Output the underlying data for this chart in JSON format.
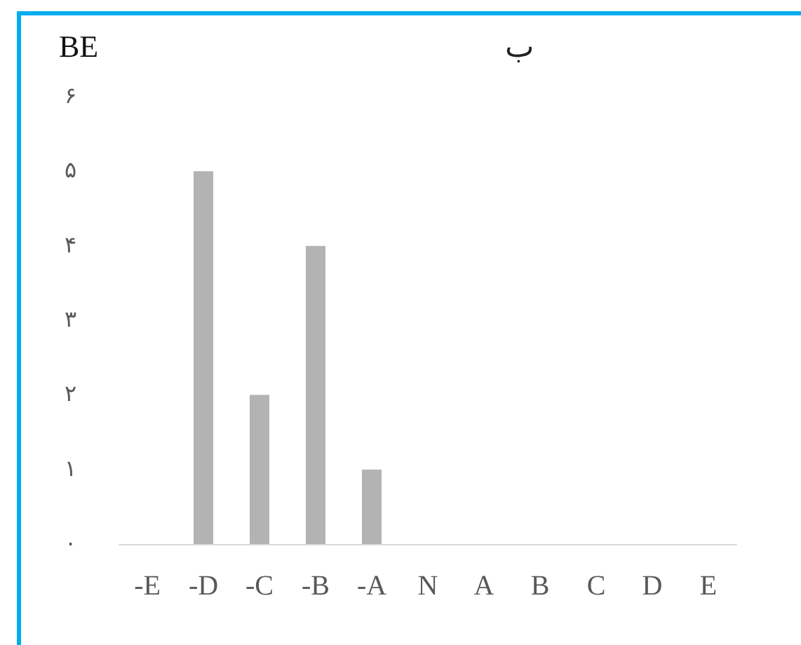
{
  "chart_data": {
    "type": "bar",
    "title": "ب",
    "ylabel": "BE",
    "categories": [
      "-E",
      "-D",
      "-C",
      "-B",
      "-A",
      "N",
      "A",
      "B",
      "C",
      "D",
      "E"
    ],
    "values": [
      0,
      5,
      2,
      4,
      1,
      0,
      0,
      0,
      0,
      0,
      0
    ],
    "color": "#b3b3b3",
    "ylim": [
      0,
      6
    ],
    "yticks": [
      {
        "value": 0,
        "label": "۰"
      },
      {
        "value": 1,
        "label": "۱"
      },
      {
        "value": 2,
        "label": "۲"
      },
      {
        "value": 3,
        "label": "۳"
      },
      {
        "value": 4,
        "label": "۴"
      },
      {
        "value": 5,
        "label": "۵"
      },
      {
        "value": 6,
        "label": "۶"
      }
    ],
    "grid": false
  }
}
